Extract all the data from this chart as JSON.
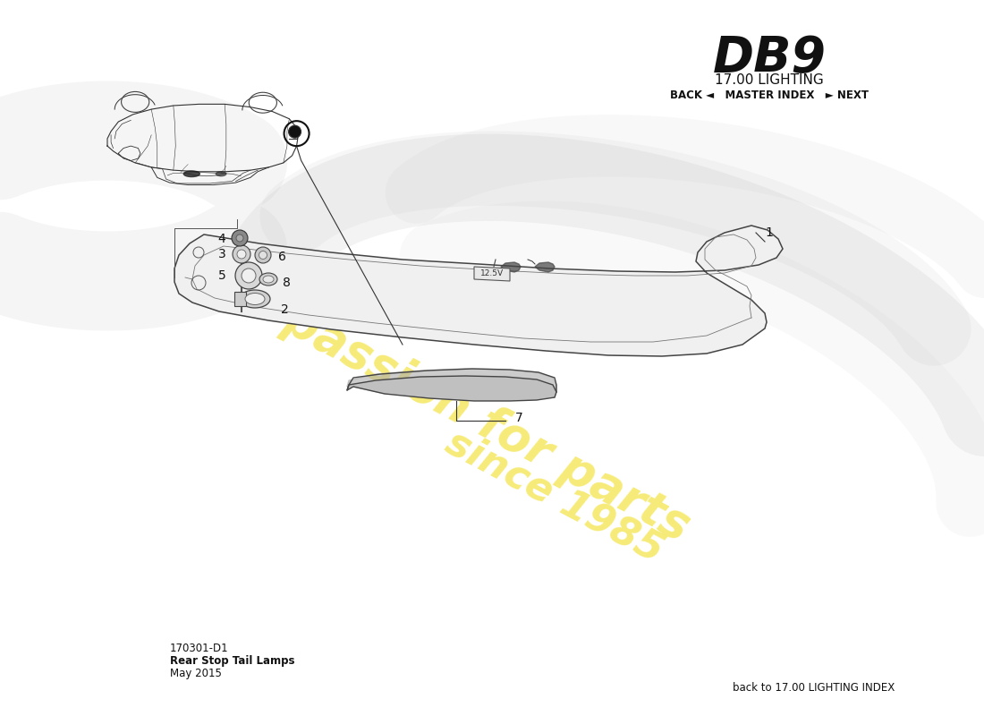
{
  "title_model": "DB9",
  "title_section": "17.00 LIGHTING",
  "nav_text": "BACK ◄   MASTER INDEX   ► NEXT",
  "doc_number": "170301-D1",
  "doc_name": "Rear Stop Tail Lamps",
  "doc_date": "May 2015",
  "bottom_right_text": "back to 17.00 LIGHTING INDEX",
  "bg_color": "#ffffff",
  "watermark_color_yellow": "#f5e96a",
  "watermark_color_gray": "#d8d8d8",
  "line_color": "#444444",
  "text_color": "#111111"
}
